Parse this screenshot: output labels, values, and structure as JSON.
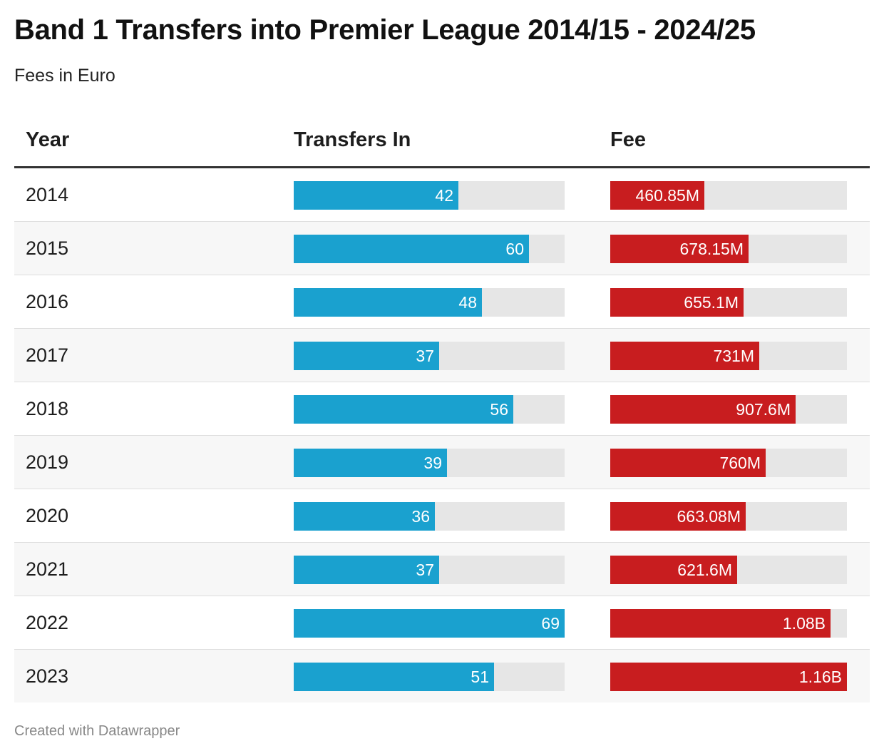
{
  "title": "Band 1 Transfers into Premier League 2014/15 - 2024/25",
  "subtitle": "Fees in Euro",
  "footer": "Created with Datawrapper",
  "colors": {
    "transfers_bar": "#1aa1cf",
    "fee_bar": "#c81d1f",
    "track": "#e6e6e6"
  },
  "chart_data": {
    "type": "table",
    "title": "Band 1 Transfers into Premier League 2014/15 - 2024/25",
    "subtitle": "Fees in Euro",
    "columns": [
      "Year",
      "Transfers In",
      "Fee"
    ],
    "rows": [
      {
        "year": "2014",
        "transfers": 42,
        "transfers_label": "42",
        "fee": 460.85,
        "fee_label": "460.85M"
      },
      {
        "year": "2015",
        "transfers": 60,
        "transfers_label": "60",
        "fee": 678.15,
        "fee_label": "678.15M"
      },
      {
        "year": "2016",
        "transfers": 48,
        "transfers_label": "48",
        "fee": 655.1,
        "fee_label": "655.1M"
      },
      {
        "year": "2017",
        "transfers": 37,
        "transfers_label": "37",
        "fee": 731,
        "fee_label": "731M"
      },
      {
        "year": "2018",
        "transfers": 56,
        "transfers_label": "56",
        "fee": 907.6,
        "fee_label": "907.6M"
      },
      {
        "year": "2019",
        "transfers": 39,
        "transfers_label": "39",
        "fee": 760,
        "fee_label": "760M"
      },
      {
        "year": "2020",
        "transfers": 36,
        "transfers_label": "36",
        "fee": 663.08,
        "fee_label": "663.08M"
      },
      {
        "year": "2021",
        "transfers": 37,
        "transfers_label": "37",
        "fee": 621.6,
        "fee_label": "621.6M"
      },
      {
        "year": "2022",
        "transfers": 69,
        "transfers_label": "69",
        "fee": 1080,
        "fee_label": "1.08B"
      },
      {
        "year": "2023",
        "transfers": 51,
        "transfers_label": "51",
        "fee": 1160,
        "fee_label": "1.16B"
      }
    ],
    "transfers_range": [
      0,
      69
    ],
    "fee_range": [
      0,
      1160
    ],
    "fee_unit": "M"
  }
}
